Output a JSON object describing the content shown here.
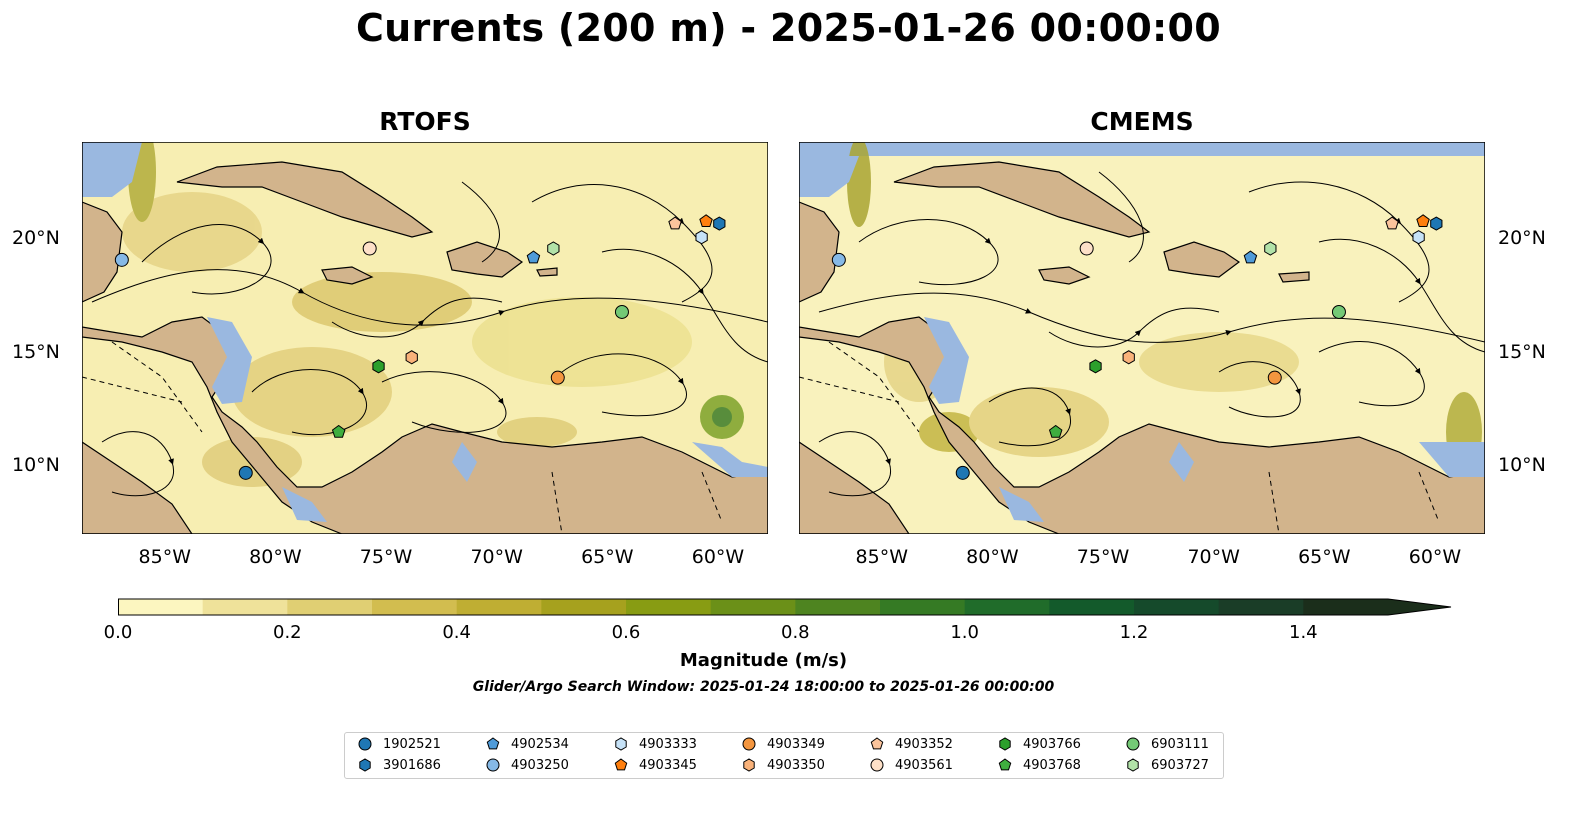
{
  "title": "Currents (200 m) - 2025-01-26 00:00:00",
  "panels": [
    {
      "title": "RTOFS"
    },
    {
      "title": "CMEMS"
    }
  ],
  "lon_ticks": [
    "85°W",
    "80°W",
    "75°W",
    "70°W",
    "65°W",
    "60°W"
  ],
  "lat_ticks": [
    "20°N",
    "15°N",
    "10°N"
  ],
  "colorbar": {
    "label": "Magnitude (m/s)",
    "ticks": [
      "0.0",
      "0.2",
      "0.4",
      "0.6",
      "0.8",
      "1.0",
      "1.2",
      "1.4"
    ],
    "range": [
      0.0,
      1.5
    ],
    "extend": "max",
    "colors": [
      "#fcf6c0",
      "#efe29a",
      "#e0cf73",
      "#d2bd4f",
      "#bfae33",
      "#a6a11e",
      "#889c13",
      "#6b9018",
      "#4e8420",
      "#357a24",
      "#206c2a",
      "#135a2b",
      "#154a2b",
      "#1a3d27",
      "#1b2e1b"
    ]
  },
  "search_window": "Glider/Argo Search Window: 2025-01-24 18:00:00 to 2025-01-26 00:00:00",
  "colors": {
    "land": "#d2b48c",
    "water": "#9ab8e0"
  },
  "legend": [
    {
      "id": "1902521",
      "marker": "circle",
      "color": "#1f77b4"
    },
    {
      "id": "3901686",
      "marker": "hexagon",
      "color": "#1f77b4"
    },
    {
      "id": "4902534",
      "marker": "pentagon",
      "color": "#4f9bd9"
    },
    {
      "id": "4903250",
      "marker": "circle",
      "color": "#86b9e6"
    },
    {
      "id": "4903333",
      "marker": "hexagon",
      "color": "#c6e2f7"
    },
    {
      "id": "4903345",
      "marker": "pentagon",
      "color": "#ff7f0e"
    },
    {
      "id": "4903349",
      "marker": "circle",
      "color": "#f4963f"
    },
    {
      "id": "4903350",
      "marker": "hexagon",
      "color": "#f9b27a"
    },
    {
      "id": "4903352",
      "marker": "pentagon",
      "color": "#fbc49c"
    },
    {
      "id": "4903561",
      "marker": "circle",
      "color": "#fde0c8"
    },
    {
      "id": "4903766",
      "marker": "hexagon",
      "color": "#2ca02c"
    },
    {
      "id": "4903768",
      "marker": "pentagon",
      "color": "#3fae3f"
    },
    {
      "id": "6903111",
      "marker": "circle",
      "color": "#74c976"
    },
    {
      "id": "6903727",
      "marker": "hexagon",
      "color": "#b2e2a8"
    }
  ],
  "floats": [
    {
      "id": "1902521",
      "lon": -81.6,
      "lat": 9.7
    },
    {
      "id": "3901686",
      "lon": -60.2,
      "lat": 20.7
    },
    {
      "id": "4902534",
      "lon": -68.6,
      "lat": 19.2
    },
    {
      "id": "4903250",
      "lon": -87.2,
      "lat": 19.1
    },
    {
      "id": "4903333",
      "lon": -61.0,
      "lat": 20.1
    },
    {
      "id": "4903345",
      "lon": -60.8,
      "lat": 20.8
    },
    {
      "id": "4903349",
      "lon": -67.5,
      "lat": 13.9
    },
    {
      "id": "4903350",
      "lon": -74.1,
      "lat": 14.8
    },
    {
      "id": "4903352",
      "lon": -62.2,
      "lat": 20.7
    },
    {
      "id": "4903561",
      "lon": -76.0,
      "lat": 19.6
    },
    {
      "id": "4903766",
      "lon": -75.6,
      "lat": 14.4
    },
    {
      "id": "4903768",
      "lon": -77.4,
      "lat": 11.5
    },
    {
      "id": "6903111",
      "lon": -64.6,
      "lat": 16.8
    },
    {
      "id": "6903727",
      "lon": -67.7,
      "lat": 19.6
    }
  ]
}
